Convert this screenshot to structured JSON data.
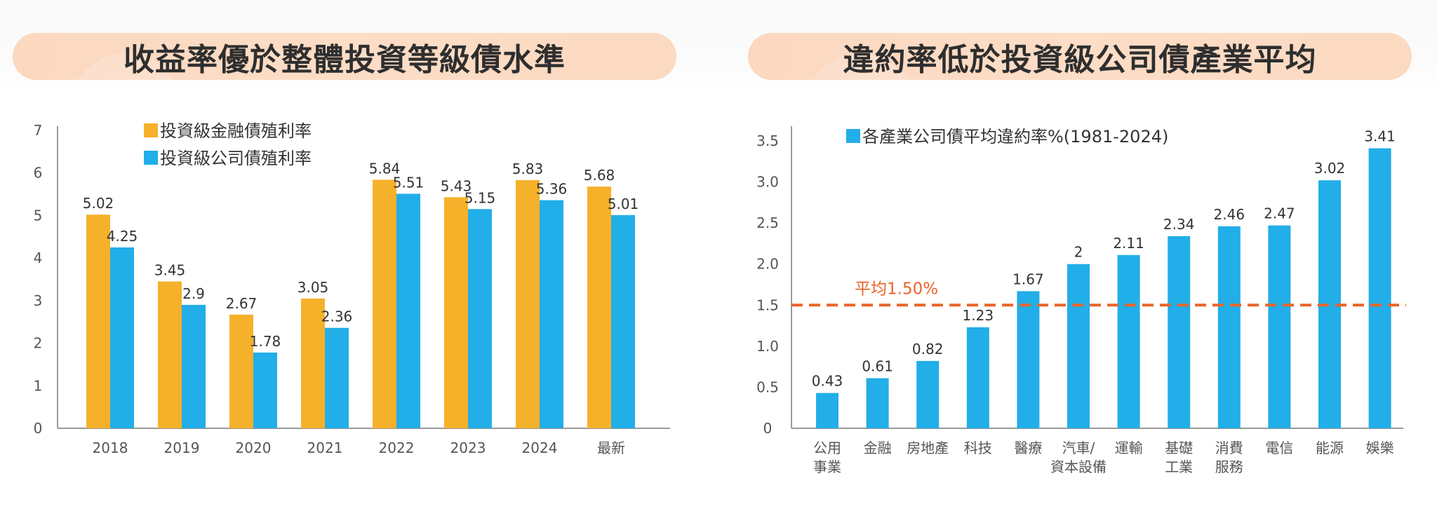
{
  "titles": {
    "left": "收益率優於整體投資等級債水準",
    "right": "違約率低於投資級公司債產業平均"
  },
  "colors": {
    "financial": "#f5b12a",
    "corporate": "#22aee8",
    "average_line": "#e8652a",
    "axis": "#9a9a9a",
    "title_pill": "#fcd9c2"
  },
  "chart_data": [
    {
      "type": "bar",
      "title": "收益率優於整體投資等級債水準",
      "xlabel": "",
      "ylabel": "",
      "ylim": [
        0,
        7
      ],
      "yticks": [
        0,
        1,
        2,
        3,
        4,
        5,
        6,
        7
      ],
      "ytick_labels": [
        "0",
        "1",
        "2",
        "3",
        "4",
        "5",
        "6",
        "7"
      ],
      "grid": false,
      "legend_position": "top-center",
      "categories": [
        "2018",
        "2019",
        "2020",
        "2021",
        "2022",
        "2023",
        "2024",
        "最新"
      ],
      "series": [
        {
          "name": "投資級金融債殖利率",
          "color": "#f5b12a",
          "values": [
            5.02,
            3.45,
            2.67,
            3.05,
            5.84,
            5.43,
            5.83,
            5.68
          ],
          "labels": [
            "5.02",
            "3.45",
            "2.67",
            "3.05",
            "5.84",
            "5.43",
            "5.83",
            "5.68"
          ]
        },
        {
          "name": "投資級公司債殖利率",
          "color": "#22aee8",
          "values": [
            4.25,
            2.9,
            1.78,
            2.36,
            5.51,
            5.15,
            5.36,
            5.01
          ],
          "labels": [
            "4.25",
            "2.9",
            "1.78",
            "2.36",
            "5.51",
            "5.15",
            "5.36",
            "5.01"
          ]
        }
      ]
    },
    {
      "type": "bar",
      "title": "違約率低於投資級公司債產業平均",
      "xlabel": "",
      "ylabel": "",
      "ylim": [
        0,
        3.5
      ],
      "yticks": [
        0,
        0.5,
        1.0,
        1.5,
        2.0,
        2.5,
        3.0,
        3.5
      ],
      "ytick_labels": [
        "0",
        "0.5",
        "1.0",
        "1.5",
        "2.0",
        "2.5",
        "3.0",
        "3.5"
      ],
      "grid": false,
      "legend_position": "top-left",
      "categories": [
        [
          "公用",
          "事業"
        ],
        [
          "金融"
        ],
        [
          "房地產"
        ],
        [
          "科技"
        ],
        [
          "醫療"
        ],
        [
          "汽車/",
          "資本設備"
        ],
        [
          "運輸"
        ],
        [
          "基礎",
          "工業"
        ],
        [
          "消費",
          "服務"
        ],
        [
          "電信"
        ],
        [
          "能源"
        ],
        [
          "娛樂"
        ]
      ],
      "series": [
        {
          "name": "各產業公司債平均違約率%(1981-2024)",
          "color": "#22aee8",
          "values": [
            0.43,
            0.61,
            0.82,
            1.23,
            1.67,
            2,
            2.11,
            2.34,
            2.46,
            2.47,
            3.02,
            3.41
          ],
          "labels": [
            "0.43",
            "0.61",
            "0.82",
            "1.23",
            "1.67",
            "2",
            "2.11",
            "2.34",
            "2.46",
            "2.47",
            "3.02",
            "3.41"
          ]
        }
      ],
      "reference_line": {
        "value": 1.5,
        "label": "平均1.50%",
        "style": "dashed",
        "color": "#e8652a"
      }
    }
  ]
}
